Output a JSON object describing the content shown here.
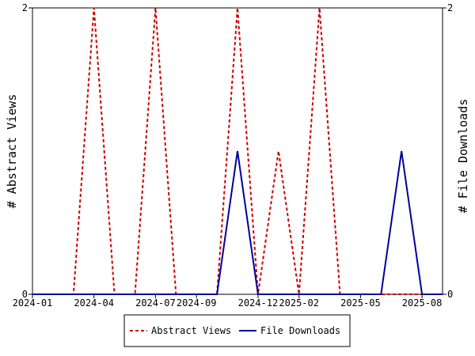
{
  "chart_data": {
    "type": "line",
    "ylabel_left": "# Abstract Views",
    "ylabel_right": "# File Downloads",
    "x_tick_labels": [
      "2024-01",
      "2024-04",
      "2024-07",
      "2024-09",
      "2024-12",
      "2025-02",
      "2025-05",
      "2025-08"
    ],
    "x_tick_months": [
      0,
      3,
      6,
      8,
      11,
      13,
      16,
      19
    ],
    "x_range_months": [
      0,
      20
    ],
    "ylim_left": [
      0,
      2
    ],
    "ylim_right": [
      0,
      2
    ],
    "y_tick_labels_left": [
      "0",
      "2"
    ],
    "y_tick_labels_right": [
      "0",
      "2"
    ],
    "legend_position": "bottom",
    "series": [
      {
        "name": "Abstract Views",
        "axis": "left",
        "color": "#cc0000",
        "style": "dashed",
        "months": [
          0,
          1,
          2,
          3,
          4,
          5,
          6,
          7,
          8,
          9,
          10,
          11,
          12,
          13,
          14,
          15,
          16,
          17,
          18,
          19,
          20
        ],
        "values": [
          0,
          0,
          0,
          2,
          0,
          0,
          2,
          0,
          0,
          0,
          2,
          0,
          1,
          0,
          2,
          0,
          0,
          0,
          0,
          0,
          0
        ]
      },
      {
        "name": "File Downloads",
        "axis": "right",
        "color": "#000099",
        "style": "solid",
        "months": [
          0,
          1,
          2,
          3,
          4,
          5,
          6,
          7,
          8,
          9,
          10,
          11,
          12,
          13,
          14,
          15,
          16,
          17,
          18,
          19,
          20
        ],
        "values": [
          0,
          0,
          0,
          0,
          0,
          0,
          0,
          0,
          0,
          0,
          1,
          0,
          0,
          0,
          0,
          0,
          0,
          0,
          1,
          0,
          0
        ]
      }
    ]
  }
}
